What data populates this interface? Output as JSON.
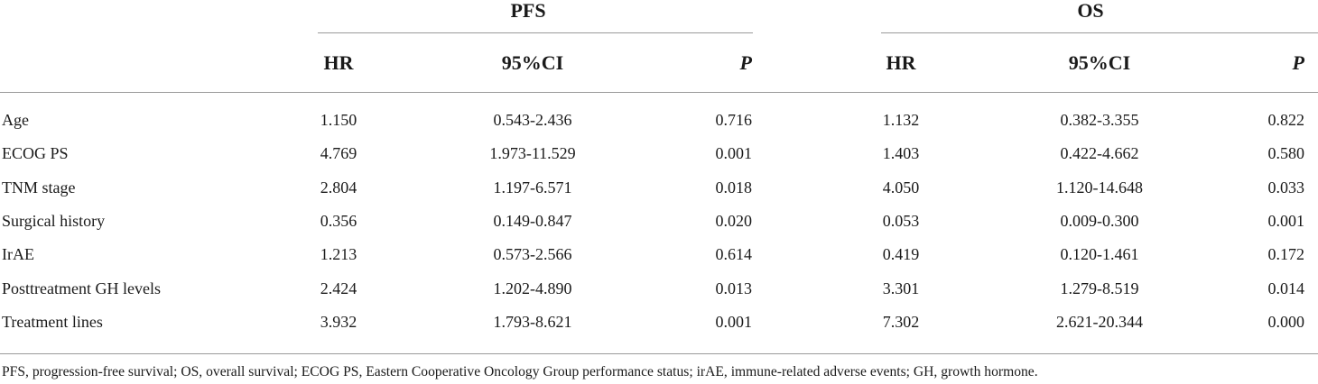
{
  "table": {
    "groups": [
      "PFS",
      "OS"
    ],
    "columns": [
      "HR",
      "95%CI",
      "P",
      "HR",
      "95%CI",
      "P"
    ],
    "rows": [
      {
        "label": "Age",
        "values": [
          "1.150",
          "0.543-2.436",
          "0.716",
          "1.132",
          "0.382-3.355",
          "0.822"
        ]
      },
      {
        "label": "ECOG PS",
        "values": [
          "4.769",
          "1.973-11.529",
          "0.001",
          "1.403",
          "0.422-4.662",
          "0.580"
        ]
      },
      {
        "label": "TNM stage",
        "values": [
          "2.804",
          "1.197-6.571",
          "0.018",
          "4.050",
          "1.120-14.648",
          "0.033"
        ]
      },
      {
        "label": "Surgical history",
        "values": [
          "0.356",
          "0.149-0.847",
          "0.020",
          "0.053",
          "0.009-0.300",
          "0.001"
        ]
      },
      {
        "label": "IrAE",
        "values": [
          "1.213",
          "0.573-2.566",
          "0.614",
          "0.419",
          "0.120-1.461",
          "0.172"
        ]
      },
      {
        "label": "Posttreatment GH levels",
        "values": [
          "2.424",
          "1.202-4.890",
          "0.013",
          "3.301",
          "1.279-8.519",
          "0.014"
        ]
      },
      {
        "label": "Treatment lines",
        "values": [
          "3.932",
          "1.793-8.621",
          "0.001",
          "7.302",
          "2.621-20.344",
          "0.000"
        ]
      }
    ],
    "footnote": "PFS, progression-free survival; OS, overall survival; ECOG PS, Eastern Cooperative Oncology Group performance status; irAE, immune-related adverse events; GH, growth hormone."
  }
}
